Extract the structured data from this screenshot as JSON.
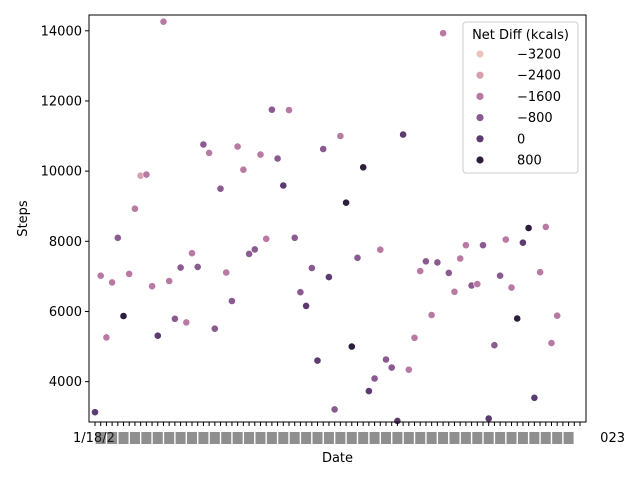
{
  "chart_data": {
    "type": "scatter",
    "title": "",
    "xlabel": "Date",
    "ylabel": "Steps",
    "ylim": [
      2850,
      14450
    ],
    "y_ticks": [
      4000,
      6000,
      8000,
      10000,
      12000,
      14000
    ],
    "y_tick_labels": [
      "4000",
      "6000",
      "8000",
      "10000",
      "12000",
      "14000"
    ],
    "x_tick_count": 86,
    "x_first_tick_label": "1/18/2",
    "x_last_tick_label": "023",
    "grid": false,
    "legend": {
      "title": "Net Diff (kcals)",
      "placement": "top-right",
      "entries": [
        {
          "label": "−3200",
          "color": "#ebc3bd"
        },
        {
          "label": "−2400",
          "color": "#d7a0ad"
        },
        {
          "label": "−1600",
          "color": "#b87aa3"
        },
        {
          "label": "−800",
          "color": "#8b5a91"
        },
        {
          "label": "0",
          "color": "#5c3b71"
        },
        {
          "label": "800",
          "color": "#2d1e3e"
        }
      ]
    },
    "points": [
      {
        "i": 0,
        "steps": 3130,
        "color": "#5c3b71"
      },
      {
        "i": 1,
        "steps": 7020,
        "color": "#b87aa3"
      },
      {
        "i": 2,
        "steps": 5260,
        "color": "#b87aa3"
      },
      {
        "i": 3,
        "steps": 6830,
        "color": "#b87aa3"
      },
      {
        "i": 4,
        "steps": 8100,
        "color": "#8b5a91"
      },
      {
        "i": 5,
        "steps": 5870,
        "color": "#2d1e3e"
      },
      {
        "i": 6,
        "steps": 7070,
        "color": "#b87aa3"
      },
      {
        "i": 7,
        "steps": 8930,
        "color": "#b87aa3"
      },
      {
        "i": 8,
        "steps": 9870,
        "color": "#d7a0ad"
      },
      {
        "i": 9,
        "steps": 9900,
        "color": "#b87aa3"
      },
      {
        "i": 10,
        "steps": 6720,
        "color": "#b87aa3"
      },
      {
        "i": 11,
        "steps": 5310,
        "color": "#5c3b71"
      },
      {
        "i": 12,
        "steps": 14260,
        "color": "#b87aa3"
      },
      {
        "i": 13,
        "steps": 6870,
        "color": "#b87aa3"
      },
      {
        "i": 14,
        "steps": 5790,
        "color": "#8b5a91"
      },
      {
        "i": 15,
        "steps": 7250,
        "color": "#8b5a91"
      },
      {
        "i": 16,
        "steps": 5690,
        "color": "#b87aa3"
      },
      {
        "i": 17,
        "steps": 7660,
        "color": "#b87aa3"
      },
      {
        "i": 18,
        "steps": 7270,
        "color": "#8b5a91"
      },
      {
        "i": 19,
        "steps": 10760,
        "color": "#8b5a91"
      },
      {
        "i": 20,
        "steps": 10520,
        "color": "#b87aa3"
      },
      {
        "i": 21,
        "steps": 5510,
        "color": "#8b5a91"
      },
      {
        "i": 22,
        "steps": 9500,
        "color": "#8b5a91"
      },
      {
        "i": 23,
        "steps": 7110,
        "color": "#b87aa3"
      },
      {
        "i": 24,
        "steps": 6300,
        "color": "#8b5a91"
      },
      {
        "i": 25,
        "steps": 10700,
        "color": "#b87aa3"
      },
      {
        "i": 26,
        "steps": 10040,
        "color": "#b87aa3"
      },
      {
        "i": 27,
        "steps": 7640,
        "color": "#8b5a91"
      },
      {
        "i": 28,
        "steps": 7770,
        "color": "#8b5a91"
      },
      {
        "i": 29,
        "steps": 10470,
        "color": "#b87aa3"
      },
      {
        "i": 30,
        "steps": 8070,
        "color": "#b87aa3"
      },
      {
        "i": 31,
        "steps": 11750,
        "color": "#8b5a91"
      },
      {
        "i": 32,
        "steps": 10360,
        "color": "#8b5a91"
      },
      {
        "i": 33,
        "steps": 9590,
        "color": "#5c3b71"
      },
      {
        "i": 34,
        "steps": 11740,
        "color": "#b87aa3"
      },
      {
        "i": 35,
        "steps": 8100,
        "color": "#8b5a91"
      },
      {
        "i": 36,
        "steps": 6550,
        "color": "#8b5a91"
      },
      {
        "i": 37,
        "steps": 6160,
        "color": "#5c3b71"
      },
      {
        "i": 38,
        "steps": 7240,
        "color": "#8b5a91"
      },
      {
        "i": 39,
        "steps": 4600,
        "color": "#5c3b71"
      },
      {
        "i": 40,
        "steps": 10630,
        "color": "#8b5a91"
      },
      {
        "i": 41,
        "steps": 6980,
        "color": "#5c3b71"
      },
      {
        "i": 42,
        "steps": 3210,
        "color": "#8b5a91"
      },
      {
        "i": 43,
        "steps": 11000,
        "color": "#b87aa3"
      },
      {
        "i": 44,
        "steps": 9100,
        "color": "#2d1e3e"
      },
      {
        "i": 45,
        "steps": 5000,
        "color": "#2d1e3e"
      },
      {
        "i": 46,
        "steps": 7530,
        "color": "#8b5a91"
      },
      {
        "i": 47,
        "steps": 10110,
        "color": "#2d1e3e"
      },
      {
        "i": 48,
        "steps": 3730,
        "color": "#5c3b71"
      },
      {
        "i": 49,
        "steps": 4090,
        "color": "#8b5a91"
      },
      {
        "i": 50,
        "steps": 7760,
        "color": "#b87aa3"
      },
      {
        "i": 51,
        "steps": 4630,
        "color": "#8b5a91"
      },
      {
        "i": 52,
        "steps": 4400,
        "color": "#8b5a91"
      },
      {
        "i": 53,
        "steps": 2880,
        "color": "#5c3b71"
      },
      {
        "i": 54,
        "steps": 11040,
        "color": "#5c3b71"
      },
      {
        "i": 55,
        "steps": 4340,
        "color": "#b87aa3"
      },
      {
        "i": 56,
        "steps": 5250,
        "color": "#b87aa3"
      },
      {
        "i": 57,
        "steps": 7150,
        "color": "#b87aa3"
      },
      {
        "i": 58,
        "steps": 7430,
        "color": "#8b5a91"
      },
      {
        "i": 59,
        "steps": 5900,
        "color": "#b87aa3"
      },
      {
        "i": 60,
        "steps": 7400,
        "color": "#8b5a91"
      },
      {
        "i": 61,
        "steps": 13930,
        "color": "#b87aa3"
      },
      {
        "i": 62,
        "steps": 7100,
        "color": "#8b5a91"
      },
      {
        "i": 63,
        "steps": 6560,
        "color": "#b87aa3"
      },
      {
        "i": 64,
        "steps": 7510,
        "color": "#b87aa3"
      },
      {
        "i": 65,
        "steps": 7890,
        "color": "#b87aa3"
      },
      {
        "i": 66,
        "steps": 6740,
        "color": "#8b5a91"
      },
      {
        "i": 67,
        "steps": 6780,
        "color": "#b87aa3"
      },
      {
        "i": 68,
        "steps": 7890,
        "color": "#8b5a91"
      },
      {
        "i": 69,
        "steps": 2950,
        "color": "#5c3b71"
      },
      {
        "i": 70,
        "steps": 5040,
        "color": "#8b5a91"
      },
      {
        "i": 71,
        "steps": 7020,
        "color": "#8b5a91"
      },
      {
        "i": 72,
        "steps": 8050,
        "color": "#b87aa3"
      },
      {
        "i": 73,
        "steps": 6680,
        "color": "#b87aa3"
      },
      {
        "i": 74,
        "steps": 5800,
        "color": "#2d1e3e"
      },
      {
        "i": 75,
        "steps": 7960,
        "color": "#5c3b71"
      },
      {
        "i": 76,
        "steps": 8380,
        "color": "#2d1e3e"
      },
      {
        "i": 77,
        "steps": 3540,
        "color": "#5c3b71"
      },
      {
        "i": 78,
        "steps": 7120,
        "color": "#b87aa3"
      },
      {
        "i": 79,
        "steps": 8410,
        "color": "#b87aa3"
      },
      {
        "i": 80,
        "steps": 5100,
        "color": "#b87aa3"
      },
      {
        "i": 81,
        "steps": 5880,
        "color": "#b87aa3"
      }
    ]
  }
}
